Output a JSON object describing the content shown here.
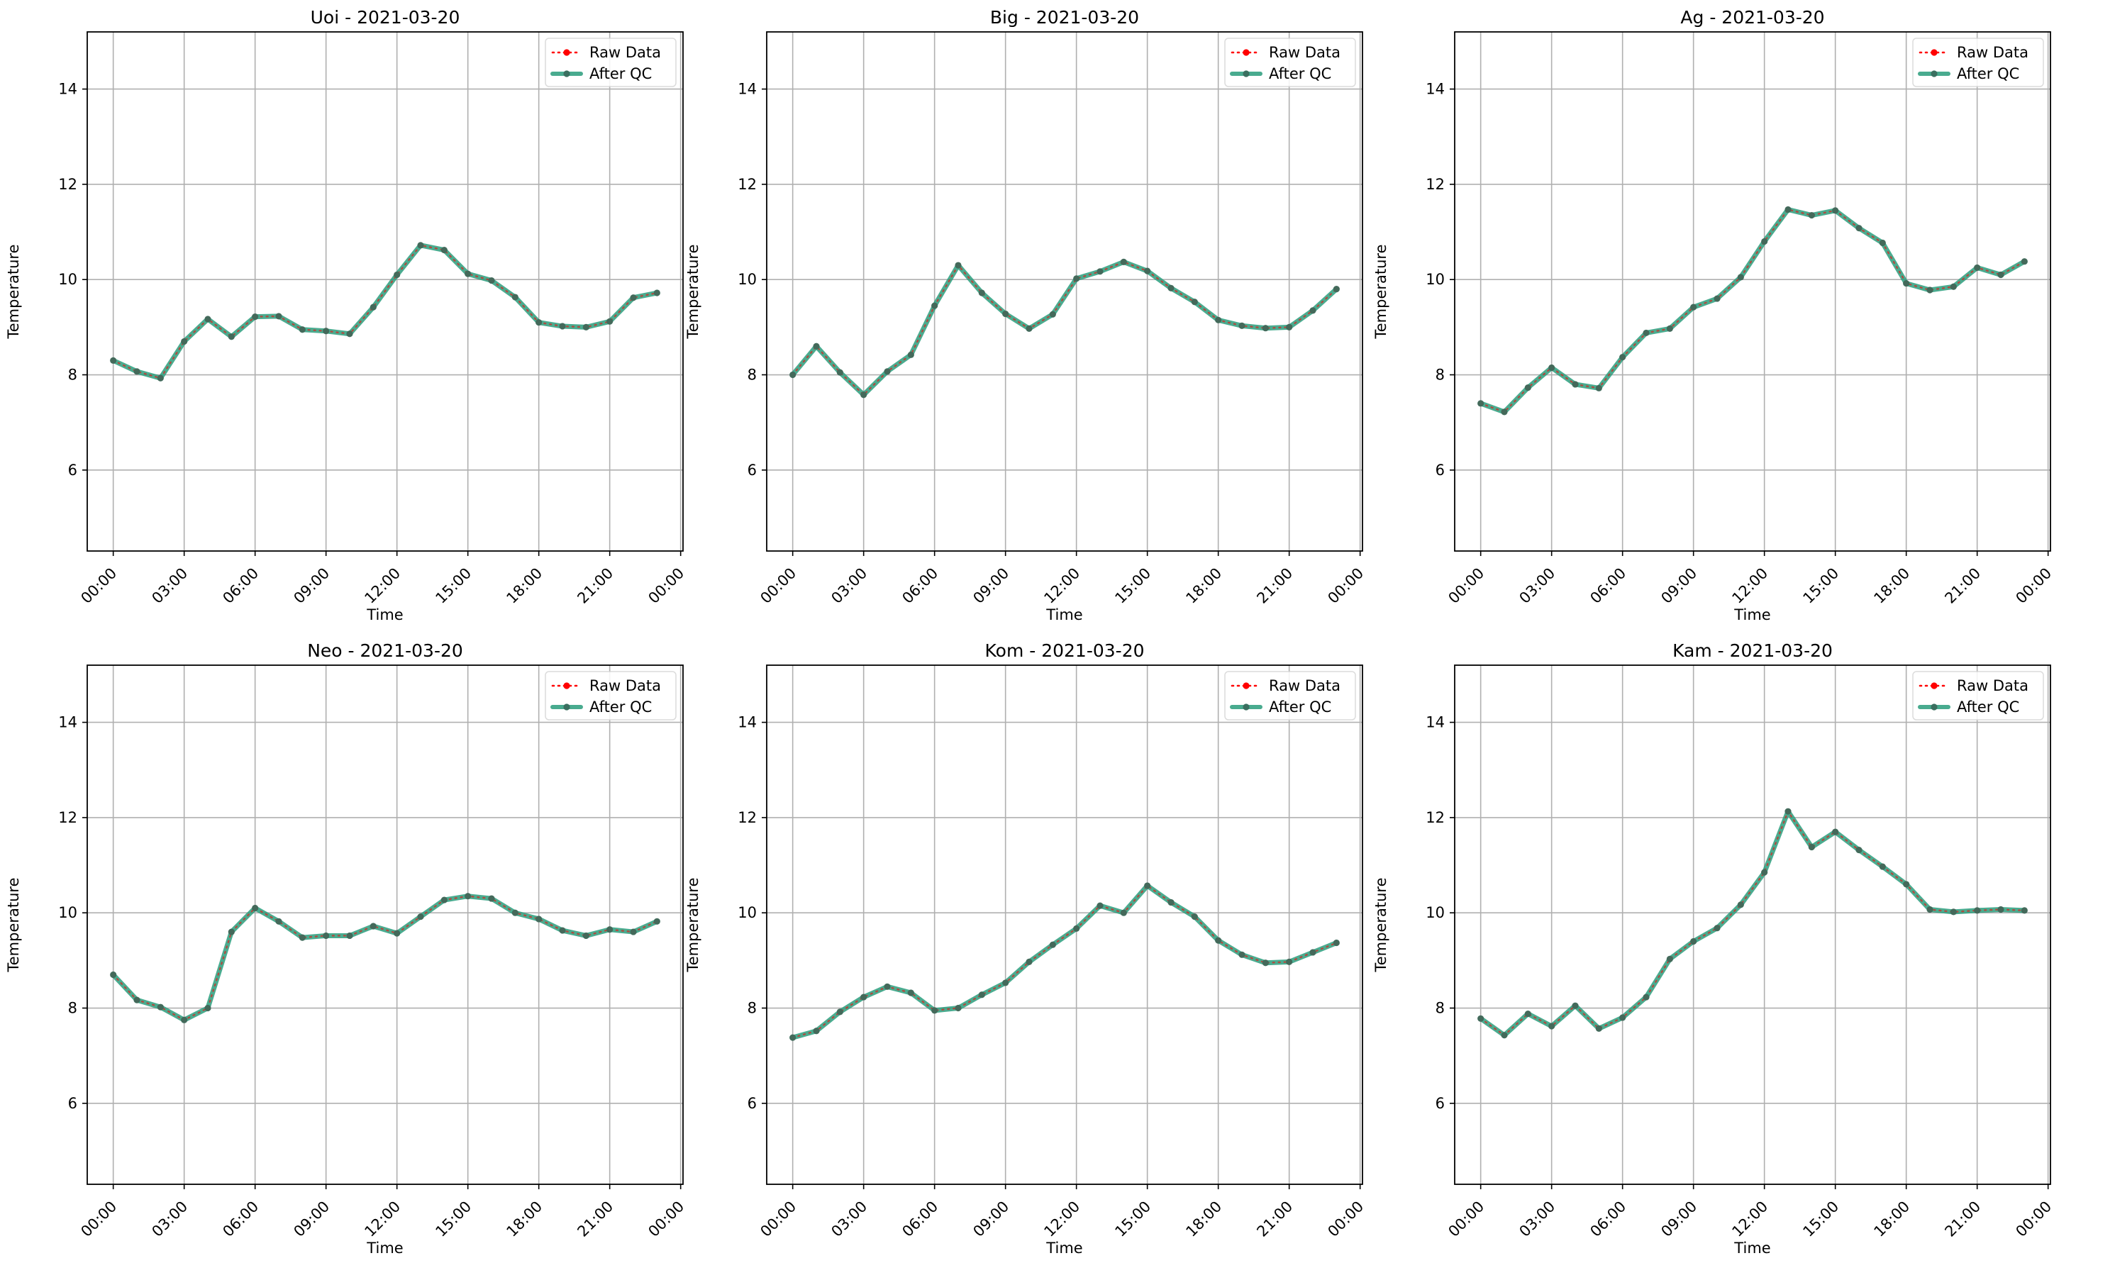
{
  "chart_data": [
    {
      "type": "line",
      "title": "Uoi - 2021-03-20",
      "xlabel": "Time",
      "ylabel": "Temperature",
      "xlim_hours": [
        -1.1,
        24.1
      ],
      "ylim": [
        4.3,
        15.2
      ],
      "y_ticks": [
        6,
        8,
        10,
        12,
        14
      ],
      "x_tick_hours": [
        0,
        3,
        6,
        9,
        12,
        15,
        18,
        21,
        24
      ],
      "x_tick_labels": [
        "00:00",
        "03:00",
        "06:00",
        "09:00",
        "12:00",
        "15:00",
        "18:00",
        "21:00",
        "00:00"
      ],
      "grid": true,
      "legend_placement": "top-right",
      "x_hours": [
        0,
        1,
        2,
        3,
        4,
        5,
        6,
        7,
        8,
        9,
        10,
        11,
        12,
        13,
        14,
        15,
        16,
        17,
        18,
        19,
        20,
        21,
        22,
        23
      ],
      "series": [
        {
          "name": "Raw Data",
          "values": [
            8.3,
            8.07,
            7.93,
            8.7,
            9.17,
            8.8,
            9.22,
            9.23,
            8.95,
            8.92,
            8.86,
            9.42,
            10.1,
            10.72,
            10.62,
            10.12,
            9.98,
            9.63,
            9.1,
            9.02,
            9.0,
            9.12,
            9.62,
            9.72
          ]
        },
        {
          "name": "After QC",
          "values": [
            8.3,
            8.07,
            7.93,
            8.7,
            9.17,
            8.8,
            9.22,
            9.23,
            8.95,
            8.92,
            8.86,
            9.42,
            10.1,
            10.72,
            10.62,
            10.12,
            9.98,
            9.63,
            9.1,
            9.02,
            9.0,
            9.12,
            9.62,
            9.72
          ]
        }
      ]
    },
    {
      "type": "line",
      "title": "Big - 2021-03-20",
      "xlabel": "Time",
      "ylabel": "Temperature",
      "xlim_hours": [
        -1.1,
        24.1
      ],
      "ylim": [
        4.3,
        15.2
      ],
      "y_ticks": [
        6,
        8,
        10,
        12,
        14
      ],
      "x_tick_hours": [
        0,
        3,
        6,
        9,
        12,
        15,
        18,
        21,
        24
      ],
      "x_tick_labels": [
        "00:00",
        "03:00",
        "06:00",
        "09:00",
        "12:00",
        "15:00",
        "18:00",
        "21:00",
        "00:00"
      ],
      "grid": true,
      "legend_placement": "top-right",
      "x_hours": [
        0,
        1,
        2,
        3,
        4,
        5,
        6,
        7,
        8,
        9,
        10,
        11,
        12,
        13,
        14,
        15,
        16,
        17,
        18,
        19,
        20,
        21,
        22,
        23
      ],
      "series": [
        {
          "name": "Raw Data",
          "values": [
            8.0,
            8.6,
            8.05,
            7.58,
            8.07,
            8.42,
            9.45,
            10.3,
            9.72,
            9.28,
            8.97,
            9.27,
            10.02,
            10.17,
            10.37,
            10.18,
            9.82,
            9.53,
            9.15,
            9.03,
            8.98,
            9.0,
            9.35,
            9.8
          ]
        },
        {
          "name": "After QC",
          "values": [
            8.0,
            8.6,
            8.05,
            7.58,
            8.07,
            8.42,
            9.45,
            10.3,
            9.72,
            9.28,
            8.97,
            9.27,
            10.02,
            10.17,
            10.37,
            10.18,
            9.82,
            9.53,
            9.15,
            9.03,
            8.98,
            9.0,
            9.35,
            9.8
          ]
        }
      ]
    },
    {
      "type": "line",
      "title": "Ag - 2021-03-20",
      "xlabel": "Time",
      "ylabel": "Temperature",
      "xlim_hours": [
        -1.1,
        24.1
      ],
      "ylim": [
        4.3,
        15.2
      ],
      "y_ticks": [
        6,
        8,
        10,
        12,
        14
      ],
      "x_tick_hours": [
        0,
        3,
        6,
        9,
        12,
        15,
        18,
        21,
        24
      ],
      "x_tick_labels": [
        "00:00",
        "03:00",
        "06:00",
        "09:00",
        "12:00",
        "15:00",
        "18:00",
        "21:00",
        "00:00"
      ],
      "grid": true,
      "legend_placement": "top-right",
      "x_hours": [
        0,
        1,
        2,
        3,
        4,
        5,
        6,
        7,
        8,
        9,
        10,
        11,
        12,
        13,
        14,
        15,
        16,
        17,
        18,
        19,
        20,
        21,
        22,
        23
      ],
      "series": [
        {
          "name": "Raw Data",
          "values": [
            7.4,
            7.22,
            7.73,
            8.15,
            7.8,
            7.72,
            8.37,
            8.88,
            8.97,
            9.42,
            9.6,
            10.05,
            10.8,
            11.47,
            11.35,
            11.45,
            11.08,
            10.77,
            9.92,
            9.78,
            9.85,
            10.25,
            10.1,
            10.38
          ]
        },
        {
          "name": "After QC",
          "values": [
            7.4,
            7.22,
            7.73,
            8.15,
            7.8,
            7.72,
            8.37,
            8.88,
            8.97,
            9.42,
            9.6,
            10.05,
            10.8,
            11.47,
            11.35,
            11.45,
            11.08,
            10.77,
            9.92,
            9.78,
            9.85,
            10.25,
            10.1,
            10.38
          ]
        }
      ]
    },
    {
      "type": "line",
      "title": "Neo - 2021-03-20",
      "xlabel": "Time",
      "ylabel": "Temperature",
      "xlim_hours": [
        -1.1,
        24.1
      ],
      "ylim": [
        4.3,
        15.2
      ],
      "y_ticks": [
        6,
        8,
        10,
        12,
        14
      ],
      "x_tick_hours": [
        0,
        3,
        6,
        9,
        12,
        15,
        18,
        21,
        24
      ],
      "x_tick_labels": [
        "00:00",
        "03:00",
        "06:00",
        "09:00",
        "12:00",
        "15:00",
        "18:00",
        "21:00",
        "00:00"
      ],
      "grid": true,
      "legend_placement": "top-right",
      "x_hours": [
        0,
        1,
        2,
        3,
        4,
        5,
        6,
        7,
        8,
        9,
        10,
        11,
        12,
        13,
        14,
        15,
        16,
        17,
        18,
        19,
        20,
        21,
        22,
        23
      ],
      "series": [
        {
          "name": "Raw Data",
          "values": [
            8.7,
            8.17,
            8.02,
            7.75,
            8.0,
            9.6,
            10.1,
            9.82,
            9.48,
            9.52,
            9.52,
            9.72,
            9.57,
            9.92,
            10.27,
            10.35,
            10.3,
            10.0,
            9.87,
            9.63,
            9.52,
            9.65,
            9.6,
            9.82
          ]
        },
        {
          "name": "After QC",
          "values": [
            8.7,
            8.17,
            8.02,
            7.75,
            8.0,
            9.6,
            10.1,
            9.82,
            9.48,
            9.52,
            9.52,
            9.72,
            9.57,
            9.92,
            10.27,
            10.35,
            10.3,
            10.0,
            9.87,
            9.63,
            9.52,
            9.65,
            9.6,
            9.82
          ]
        }
      ]
    },
    {
      "type": "line",
      "title": "Kom - 2021-03-20",
      "xlabel": "Time",
      "ylabel": "Temperature",
      "xlim_hours": [
        -1.1,
        24.1
      ],
      "ylim": [
        4.3,
        15.2
      ],
      "y_ticks": [
        6,
        8,
        10,
        12,
        14
      ],
      "x_tick_hours": [
        0,
        3,
        6,
        9,
        12,
        15,
        18,
        21,
        24
      ],
      "x_tick_labels": [
        "00:00",
        "03:00",
        "06:00",
        "09:00",
        "12:00",
        "15:00",
        "18:00",
        "21:00",
        "00:00"
      ],
      "grid": true,
      "legend_placement": "top-right",
      "x_hours": [
        0,
        1,
        2,
        3,
        4,
        5,
        6,
        7,
        8,
        9,
        10,
        11,
        12,
        13,
        14,
        15,
        16,
        17,
        18,
        19,
        20,
        21,
        22,
        23
      ],
      "series": [
        {
          "name": "Raw Data",
          "values": [
            7.38,
            7.52,
            7.92,
            8.23,
            8.45,
            8.32,
            7.95,
            8.0,
            8.28,
            8.53,
            8.97,
            9.33,
            9.67,
            10.15,
            10.0,
            10.57,
            10.22,
            9.92,
            9.42,
            9.12,
            8.95,
            8.97,
            9.17,
            9.37
          ]
        },
        {
          "name": "After QC",
          "values": [
            7.38,
            7.52,
            7.92,
            8.23,
            8.45,
            8.32,
            7.95,
            8.0,
            8.28,
            8.53,
            8.97,
            9.33,
            9.67,
            10.15,
            10.0,
            10.57,
            10.22,
            9.92,
            9.42,
            9.12,
            8.95,
            8.97,
            9.17,
            9.37
          ]
        }
      ]
    },
    {
      "type": "line",
      "title": "Kam - 2021-03-20",
      "xlabel": "Time",
      "ylabel": "Temperature",
      "xlim_hours": [
        -1.1,
        24.1
      ],
      "ylim": [
        4.3,
        15.2
      ],
      "y_ticks": [
        6,
        8,
        10,
        12,
        14
      ],
      "x_tick_hours": [
        0,
        3,
        6,
        9,
        12,
        15,
        18,
        21,
        24
      ],
      "x_tick_labels": [
        "00:00",
        "03:00",
        "06:00",
        "09:00",
        "12:00",
        "15:00",
        "18:00",
        "21:00",
        "00:00"
      ],
      "grid": true,
      "legend_placement": "top-right",
      "x_hours": [
        0,
        1,
        2,
        3,
        4,
        5,
        6,
        7,
        8,
        9,
        10,
        11,
        12,
        13,
        14,
        15,
        16,
        17,
        18,
        19,
        20,
        21,
        22,
        23
      ],
      "series": [
        {
          "name": "Raw Data",
          "values": [
            7.78,
            7.43,
            7.88,
            7.62,
            8.05,
            7.57,
            7.8,
            8.23,
            9.03,
            9.4,
            9.68,
            10.17,
            10.85,
            12.13,
            11.38,
            11.7,
            11.32,
            10.97,
            10.6,
            10.07,
            10.02,
            10.05,
            10.07,
            10.05
          ]
        },
        {
          "name": "After QC",
          "values": [
            7.78,
            7.43,
            7.88,
            7.62,
            8.05,
            7.57,
            7.8,
            8.23,
            9.03,
            9.4,
            9.68,
            10.17,
            10.85,
            12.13,
            11.38,
            11.7,
            11.32,
            10.97,
            10.6,
            10.07,
            10.02,
            10.05,
            10.07,
            10.05
          ]
        }
      ]
    }
  ],
  "colors": {
    "raw_data": "#ff0000",
    "after_qc": "#2a9d7c",
    "grid": "#b0b0b0",
    "axes": "#000000"
  }
}
